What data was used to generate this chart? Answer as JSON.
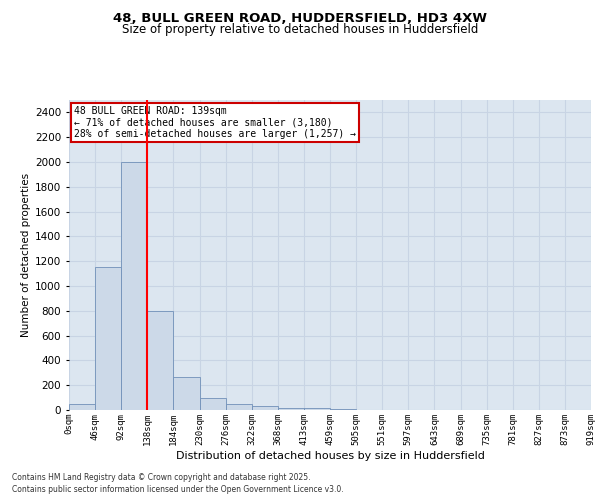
{
  "title_line1": "48, BULL GREEN ROAD, HUDDERSFIELD, HD3 4XW",
  "title_line2": "Size of property relative to detached houses in Huddersfield",
  "xlabel": "Distribution of detached houses by size in Huddersfield",
  "ylabel": "Number of detached properties",
  "bin_labels": [
    "0sqm",
    "46sqm",
    "92sqm",
    "138sqm",
    "184sqm",
    "230sqm",
    "276sqm",
    "322sqm",
    "368sqm",
    "413sqm",
    "459sqm",
    "505sqm",
    "551sqm",
    "597sqm",
    "643sqm",
    "689sqm",
    "735sqm",
    "781sqm",
    "827sqm",
    "873sqm",
    "919sqm"
  ],
  "bar_heights": [
    50,
    1150,
    2000,
    800,
    270,
    100,
    50,
    30,
    20,
    20,
    5,
    0,
    0,
    0,
    0,
    0,
    0,
    0,
    0,
    0
  ],
  "bar_color": "#ccd9e8",
  "bar_edge_color": "#7090b8",
  "grid_color": "#c8d4e4",
  "background_color": "#dce6f0",
  "red_line_x": 3,
  "annotation_text": "48 BULL GREEN ROAD: 139sqm\n← 71% of detached houses are smaller (3,180)\n28% of semi-detached houses are larger (1,257) →",
  "annotation_box_color": "#ffffff",
  "annotation_box_edge": "#cc0000",
  "ylim": [
    0,
    2500
  ],
  "yticks": [
    0,
    200,
    400,
    600,
    800,
    1000,
    1200,
    1400,
    1600,
    1800,
    2000,
    2200,
    2400
  ],
  "footer_line1": "Contains HM Land Registry data © Crown copyright and database right 2025.",
  "footer_line2": "Contains public sector information licensed under the Open Government Licence v3.0."
}
